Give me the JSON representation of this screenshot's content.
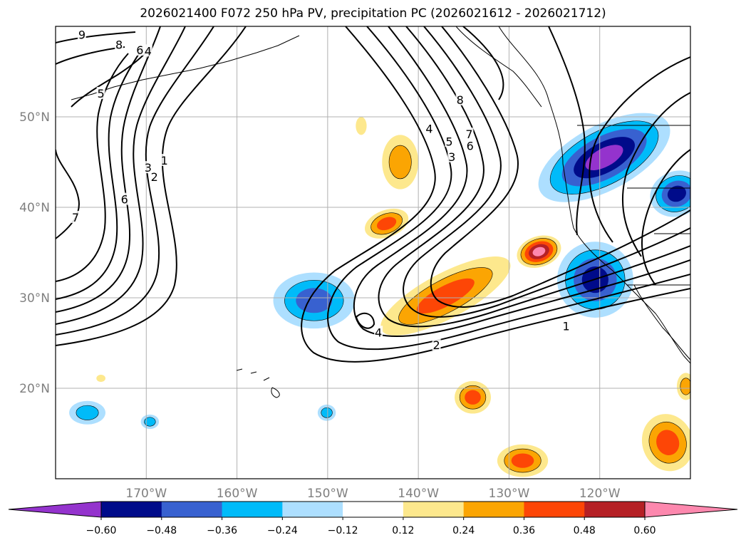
{
  "title": "2026021400 F072 250 hPa PV, precipitation PC (2026021612 - 2026021712)",
  "map": {
    "lon_range": [
      -180,
      -110
    ],
    "lat_range": [
      10,
      60
    ],
    "gridlines": true,
    "lat_ticks": [
      {
        "value": 20,
        "label": "20°N"
      },
      {
        "value": 30,
        "label": "30°N"
      },
      {
        "value": 40,
        "label": "40°N"
      },
      {
        "value": 50,
        "label": "50°N"
      }
    ],
    "lon_ticks": [
      {
        "value": -170,
        "label": "170°W"
      },
      {
        "value": -160,
        "label": "160°W"
      },
      {
        "value": -150,
        "label": "150°W"
      },
      {
        "value": -140,
        "label": "140°W"
      },
      {
        "value": -130,
        "label": "130°W"
      },
      {
        "value": -120,
        "label": "120°W"
      }
    ],
    "contour_labels": [
      {
        "text": "9",
        "lon": -177.1,
        "lat": 59.1
      },
      {
        "text": "8",
        "lon": -173.0,
        "lat": 58.0
      },
      {
        "text": "6",
        "lon": -170.7,
        "lat": 57.4
      },
      {
        "text": "4",
        "lon": -169.8,
        "lat": 57.3
      },
      {
        "text": "5",
        "lon": -175.0,
        "lat": 52.6
      },
      {
        "text": "3",
        "lon": -169.8,
        "lat": 44.4
      },
      {
        "text": "2",
        "lon": -169.1,
        "lat": 43.4
      },
      {
        "text": "1",
        "lon": -168.0,
        "lat": 45.2
      },
      {
        "text": "6",
        "lon": -172.4,
        "lat": 40.9
      },
      {
        "text": "7",
        "lon": -177.8,
        "lat": 38.9
      },
      {
        "text": "8",
        "lon": -135.4,
        "lat": 51.9
      },
      {
        "text": "4",
        "lon": -138.8,
        "lat": 48.7
      },
      {
        "text": "7",
        "lon": -134.4,
        "lat": 48.1
      },
      {
        "text": "5",
        "lon": -136.6,
        "lat": 47.3
      },
      {
        "text": "6",
        "lon": -134.3,
        "lat": 46.8
      },
      {
        "text": "3",
        "lon": -136.3,
        "lat": 45.6
      },
      {
        "text": "4",
        "lon": -144.4,
        "lat": 26.2
      },
      {
        "text": "2",
        "lon": -138.0,
        "lat": 24.8
      },
      {
        "text": "1",
        "lon": -123.7,
        "lat": 26.9
      }
    ],
    "positive_colors": [
      "#fde88d",
      "#fba503",
      "#fd4606",
      "#b52025",
      "#fd88ae"
    ],
    "negative_colors": [
      "#addfff",
      "#00bbf9",
      "#3861d0",
      "#000b8a",
      "#9433cd"
    ],
    "precip_blobs": [
      {
        "lon": -119.5,
        "lat": 45.5,
        "rlon": 8.0,
        "rlat": 3.6,
        "rot": -28,
        "level": -5
      },
      {
        "lon": -111.5,
        "lat": 41.5,
        "rlon": 3.0,
        "rlat": 2.5,
        "rot": -20,
        "level": -4
      },
      {
        "lon": -120.5,
        "lat": 32.0,
        "rlon": 4.2,
        "rlat": 4.2,
        "rot": 0,
        "level": -4
      },
      {
        "lon": -151.5,
        "lat": 29.7,
        "rlon": 4.5,
        "rlat": 3.1,
        "rot": 0,
        "level": -3
      },
      {
        "lon": -176.5,
        "lat": 17.3,
        "rlon": 2.0,
        "rlat": 1.3,
        "rot": 0,
        "level": -2
      },
      {
        "lon": -169.6,
        "lat": 16.3,
        "rlon": 1.0,
        "rlat": 0.8,
        "rot": 0,
        "level": -2
      },
      {
        "lon": -150.1,
        "lat": 17.3,
        "rlon": 1.0,
        "rlat": 0.9,
        "rot": 0,
        "level": -2
      },
      {
        "lon": -137.0,
        "lat": 30.2,
        "rlon": 8.0,
        "rlat": 2.5,
        "rot": -28,
        "level": 3
      },
      {
        "lon": -126.7,
        "lat": 35.1,
        "rlon": 2.5,
        "rlat": 1.7,
        "rot": -18,
        "level": 5
      },
      {
        "lon": -143.5,
        "lat": 38.2,
        "rlon": 2.5,
        "rlat": 1.5,
        "rot": -20,
        "level": 3
      },
      {
        "lon": -142.0,
        "lat": 45.0,
        "rlon": 2.0,
        "rlat": 3.0,
        "rot": 0,
        "level": 2
      },
      {
        "lon": -146.3,
        "lat": 49.0,
        "rlon": 0.6,
        "rlat": 1.0,
        "rot": 0,
        "level": 1
      },
      {
        "lon": -134.0,
        "lat": 19.0,
        "rlon": 2.0,
        "rlat": 1.8,
        "rot": 0,
        "level": 3
      },
      {
        "lon": -128.5,
        "lat": 12.0,
        "rlon": 2.8,
        "rlat": 1.8,
        "rot": 0,
        "level": 3
      },
      {
        "lon": -112.5,
        "lat": 14.0,
        "rlon": 2.8,
        "rlat": 3.2,
        "rot": -20,
        "level": 3
      },
      {
        "lon": -110.5,
        "lat": 20.2,
        "rlon": 1.0,
        "rlat": 1.5,
        "rot": 0,
        "level": 2
      },
      {
        "lon": -175.0,
        "lat": 21.1,
        "rlon": 0.5,
        "rlat": 0.4,
        "rot": 0,
        "level": 1
      }
    ]
  },
  "colorbar": {
    "colors": [
      "#9433cd",
      "#000b8a",
      "#3861d0",
      "#00bbf9",
      "#addfff",
      "#ffffff",
      "#fde88d",
      "#fba503",
      "#fd4606",
      "#b52025",
      "#fd88ae"
    ],
    "ticks": [
      "−0.60",
      "−0.48",
      "−0.36",
      "−0.24",
      "−0.12",
      "0.12",
      "0.24",
      "0.36",
      "0.48",
      "0.60"
    ]
  }
}
